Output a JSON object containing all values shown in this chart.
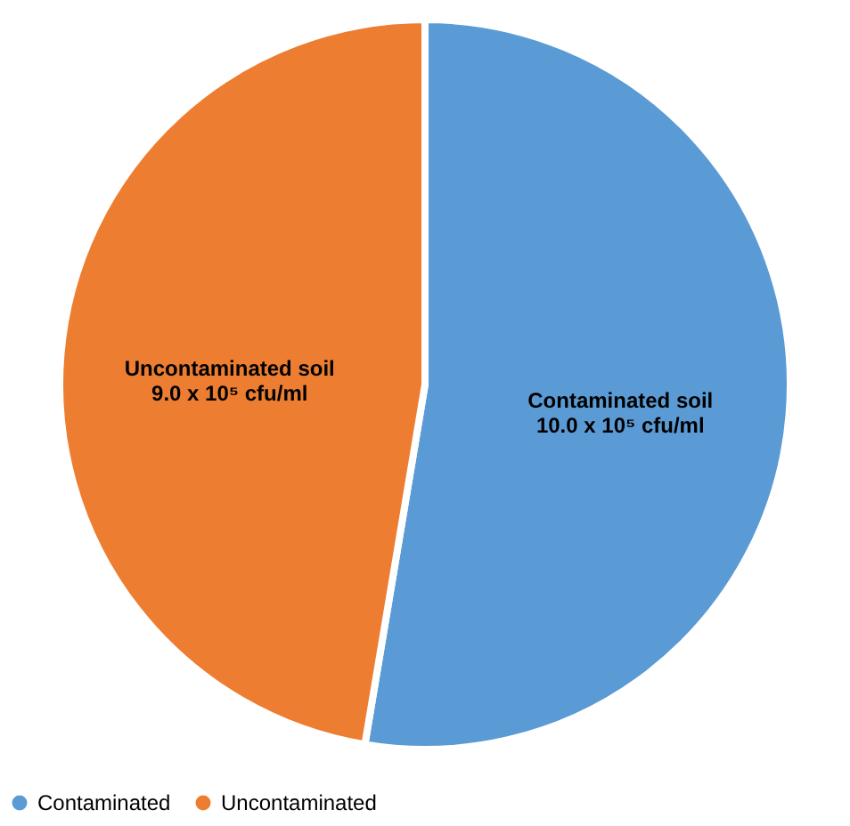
{
  "chart_data": {
    "type": "pie",
    "categories": [
      "Contaminated",
      "Uncontaminated"
    ],
    "values": [
      10.0,
      9.0
    ],
    "colors": [
      "#5b9bd5",
      "#ed7d31"
    ],
    "value_labels": [
      "Contaminated soil\n10.0 x 10⁵ cfu/ml",
      "Uncontaminated soil\n9.0 x 10⁵ cfu/ml"
    ],
    "legend": "bottom"
  }
}
